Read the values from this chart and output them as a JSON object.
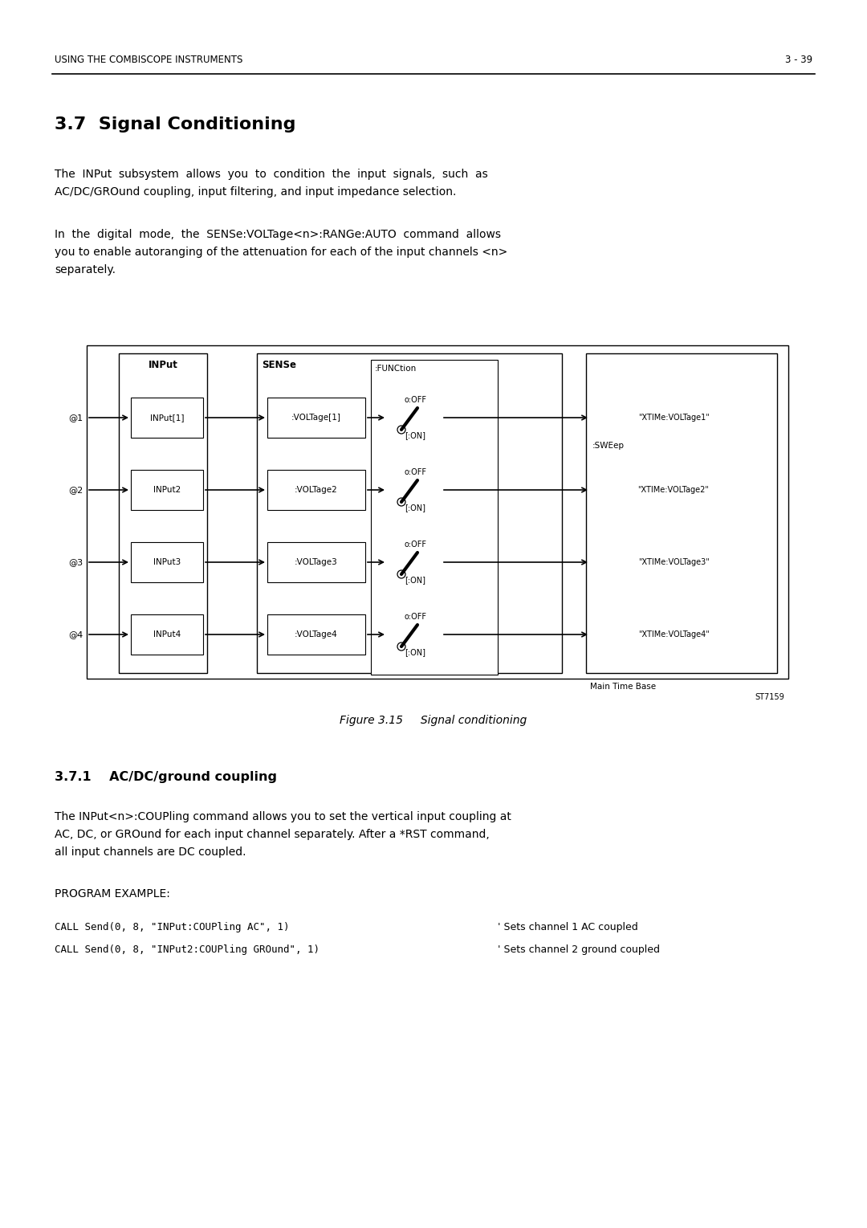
{
  "header_left": "USING THE COMBISCOPE INSTRUMENTS",
  "header_right": "3 - 39",
  "section_title": "3.7  Signal Conditioning",
  "para1a": "The  INPut  subsystem  allows  you  to  condition  the  input  signals,  such  as",
  "para1b": "AC/DC/GROund coupling, input filtering, and input impedance selection.",
  "para2a": "In  the  digital  mode,  the  SENSe:VOLTage<n>:RANGe:AUTO  command  allows",
  "para2b": "you to enable autoranging of the attenuation for each of the input channels <n>",
  "para2c": "separately.",
  "fig_caption": "Figure 3.15     Signal conditioning",
  "subsection_title": "3.7.1    AC/DC/ground coupling",
  "para3a": "The INPut<n>:COUPling command allows you to set the vertical input coupling at",
  "para3b": "AC, DC, or GROund for each input channel separately. After a *RST command,",
  "para3c": "all input channels are DC coupled.",
  "prog_example": "PROGRAM EXAMPLE:",
  "code_line1": "CALL Send(0, 8, \"INPut:COUPling AC\", 1)",
  "code_comment1": "' Sets channel 1 AC coupled",
  "code_line2": "CALL Send(0, 8, \"INPut2:COUPling GROund\", 1)",
  "code_comment2": "' Sets channel 2 ground coupled",
  "bg_color": "#ffffff",
  "text_color": "#000000",
  "diagram": {
    "input_label": "INPut",
    "sense_label": "SENSe",
    "function_label": ":FUNCtion",
    "sweep_label": ":SWEep",
    "main_tb_label": "Main Time Base",
    "st_label": "ST7159",
    "channels": [
      {
        "at": "@1",
        "input": "INPut[1]",
        "voltage": ":VOLTage[1]",
        "xtime": "\"XTIMe:VOLTage1\""
      },
      {
        "at": "@2",
        "input": "INPut2",
        "voltage": ":VOLTage2",
        "xtime": "\"XTIMe:VOLTage2\""
      },
      {
        "at": "@3",
        "input": "INPut3",
        "voltage": ":VOLTage3",
        "xtime": "\"XTIMe:VOLTage3\""
      },
      {
        "at": "@4",
        "input": "INPut4",
        "voltage": ":VOLTage4",
        "xtime": "\"XTIMe:VOLTage4\""
      }
    ]
  }
}
